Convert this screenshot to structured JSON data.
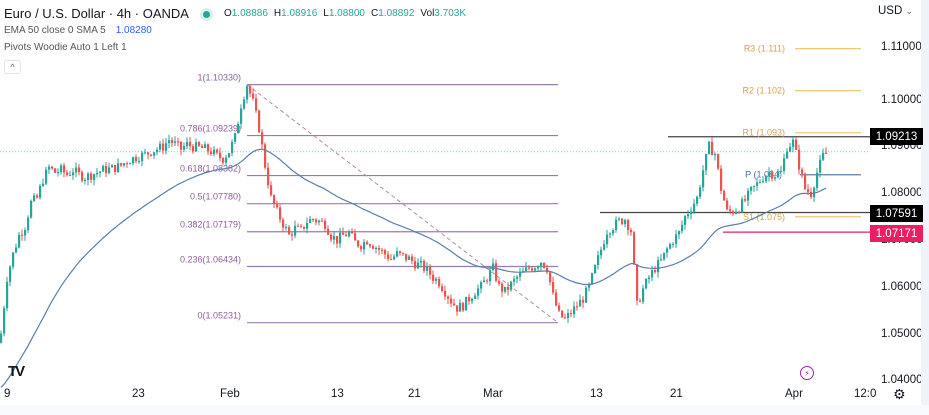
{
  "header": {
    "symbol_title": "Euro / U.S. Dollar · 4h · OANDA",
    "status_dot_color": "#26a69a",
    "ohlc": {
      "open_label": "O",
      "open": "1.08886",
      "high_label": "H",
      "high": "1.08916",
      "low_label": "L",
      "low": "1.08800",
      "close_label": "C",
      "close": "1.08892",
      "vol_label": "Vol",
      "vol": "3.703K"
    },
    "indicator_ema": {
      "label": "EMA 50 close 0 SMA 5",
      "value": "1.08280"
    },
    "indicator_pivots": {
      "label": "Pivots Woodie Auto 1 Left 1"
    },
    "collapse_icon": "^"
  },
  "price_axis": {
    "currency": "USD",
    "currency_chevron": "⌄",
    "ticks": [
      "1.11000",
      "1.10000",
      "1.09000",
      "1.08000",
      "1.07000",
      "1.06000",
      "1.05000",
      "1.04000"
    ],
    "badges": [
      {
        "value": "1.09213",
        "color": "#000000"
      },
      {
        "value": "1.07591",
        "color": "#000000"
      },
      {
        "value": "1.07171",
        "color": "#e91e63"
      }
    ]
  },
  "time_axis": {
    "ticks": [
      "9",
      "23",
      "Feb",
      "13",
      "21",
      "Mar",
      "13",
      "21",
      "Apr",
      "12:0"
    ]
  },
  "footer": {
    "logo": "TV",
    "settings_icon": "gear-icon",
    "flash_icon": "⚡"
  },
  "colors": {
    "up": "#26a69a",
    "down": "#ef5350",
    "ema": "#5b7fa6",
    "fib": "#9c7bab",
    "pivot": "#f0c674",
    "pivot_p": "#5b7fa6",
    "hline": "#444444",
    "support_red": "#e91e63",
    "current_price": "#26a69a"
  },
  "chart_data": {
    "type": "candlestick",
    "title": "Euro / U.S. Dollar · 4h · OANDA",
    "xlabel": "",
    "ylabel": "USD",
    "ylim": [
      1.04,
      1.115
    ],
    "x_tick_labels": [
      "9",
      "23",
      "Feb",
      "13",
      "21",
      "Mar",
      "13",
      "21",
      "Apr",
      "12:0"
    ],
    "y_tick_labels": [
      "1.11000",
      "1.10000",
      "1.09000",
      "1.08000",
      "1.07000",
      "1.06000",
      "1.05000",
      "1.04000"
    ],
    "last_bar": {
      "open": 1.08886,
      "high": 1.08916,
      "low": 1.088,
      "close": 1.08892,
      "volume": "3.703K"
    },
    "ema50": 1.0828,
    "fibonacci_retracement": [
      {
        "level": "1",
        "price": 1.1033,
        "label": "1(1.10330)"
      },
      {
        "level": "0.786",
        "price": 1.09239,
        "label": "0.786(1.09239)"
      },
      {
        "level": "0.618",
        "price": 1.08382,
        "label": "0.618(1.08382)"
      },
      {
        "level": "0.5",
        "price": 1.0778,
        "label": "0.5(1.07780)"
      },
      {
        "level": "0.382",
        "price": 1.07179,
        "label": "0.382(1.07179)"
      },
      {
        "level": "0.236",
        "price": 1.06434,
        "label": "0.236(1.06434)"
      },
      {
        "level": "0",
        "price": 1.05231,
        "label": "0(1.05231)"
      }
    ],
    "pivots_woodie": [
      {
        "name": "R3",
        "price": 1.111,
        "label": "R3 (1.111)"
      },
      {
        "name": "R2",
        "price": 1.102,
        "label": "R2 (1.102)"
      },
      {
        "name": "R1",
        "price": 1.093,
        "label": "R1 (1.093)"
      },
      {
        "name": "P",
        "price": 1.084,
        "label": "P (1.084)"
      },
      {
        "name": "S1",
        "price": 1.075,
        "label": "S1 (1.075)"
      }
    ],
    "horizontal_lines": [
      {
        "price": 1.09213,
        "color": "#000000"
      },
      {
        "price": 1.07591,
        "color": "#000000"
      },
      {
        "price": 1.07171,
        "color": "#e91e63"
      }
    ],
    "current_price_line": 1.08892,
    "close_path": [
      [
        0,
        1.05
      ],
      [
        6,
        1.062
      ],
      [
        12,
        1.067
      ],
      [
        18,
        1.071
      ],
      [
        24,
        1.073
      ],
      [
        30,
        1.078
      ],
      [
        36,
        1.079
      ],
      [
        42,
        1.083
      ],
      [
        48,
        1.0855
      ],
      [
        54,
        1.0845
      ],
      [
        60,
        1.085
      ],
      [
        66,
        1.084
      ],
      [
        72,
        1.085
      ],
      [
        78,
        1.084
      ],
      [
        84,
        1.0835
      ],
      [
        90,
        1.084
      ],
      [
        96,
        1.0845
      ],
      [
        102,
        1.085
      ],
      [
        108,
        1.0852
      ],
      [
        114,
        1.0855
      ],
      [
        120,
        1.086
      ],
      [
        126,
        1.087
      ],
      [
        132,
        1.0875
      ],
      [
        138,
        1.088
      ],
      [
        144,
        1.0883
      ],
      [
        150,
        1.089
      ],
      [
        156,
        1.0895
      ],
      [
        162,
        1.09
      ],
      [
        168,
        1.0915
      ],
      [
        174,
        1.0905
      ],
      [
        180,
        1.0895
      ],
      [
        186,
        1.0905
      ],
      [
        192,
        1.09
      ],
      [
        198,
        1.0898
      ],
      [
        204,
        1.0895
      ],
      [
        210,
        1.089
      ],
      [
        216,
        1.088
      ],
      [
        222,
        1.0875
      ],
      [
        228,
        1.089
      ],
      [
        234,
        1.092
      ],
      [
        240,
        1.099
      ],
      [
        246,
        1.1033
      ],
      [
        252,
        1.0995
      ],
      [
        258,
        1.094
      ],
      [
        264,
        1.086
      ],
      [
        270,
        1.079
      ],
      [
        276,
        1.076
      ],
      [
        282,
        1.0735
      ],
      [
        288,
        1.071
      ],
      [
        294,
        1.0725
      ],
      [
        300,
        1.072
      ],
      [
        306,
        1.074
      ],
      [
        312,
        1.0745
      ],
      [
        318,
        1.074
      ],
      [
        324,
        1.0735
      ],
      [
        330,
        1.071
      ],
      [
        336,
        1.07
      ],
      [
        342,
        1.071
      ],
      [
        348,
        1.0715
      ],
      [
        354,
        1.0695
      ],
      [
        360,
        1.069
      ],
      [
        366,
        1.07
      ],
      [
        372,
        1.069
      ],
      [
        378,
        1.068
      ],
      [
        384,
        1.067
      ],
      [
        390,
        1.066
      ],
      [
        396,
        1.067
      ],
      [
        402,
        1.0665
      ],
      [
        408,
        1.066
      ],
      [
        414,
        1.065
      ],
      [
        420,
        1.0645
      ],
      [
        426,
        1.0635
      ],
      [
        432,
        1.062
      ],
      [
        438,
        1.061
      ],
      [
        444,
        1.059
      ],
      [
        450,
        1.057
      ],
      [
        456,
        1.0555
      ],
      [
        462,
        1.056
      ],
      [
        468,
        1.0575
      ],
      [
        474,
        1.059
      ],
      [
        480,
        1.06
      ],
      [
        486,
        1.062
      ],
      [
        492,
        1.064
      ],
      [
        498,
        1.06
      ],
      [
        504,
        1.059
      ],
      [
        510,
        1.0605
      ],
      [
        516,
        1.062
      ],
      [
        522,
        1.063
      ],
      [
        528,
        1.064
      ],
      [
        534,
        1.0645
      ],
      [
        540,
        1.0655
      ],
      [
        546,
        1.064
      ],
      [
        552,
        1.058
      ],
      [
        558,
        1.054
      ],
      [
        564,
        1.053
      ],
      [
        570,
        1.0545
      ],
      [
        576,
        1.056
      ],
      [
        582,
        1.0575
      ],
      [
        588,
        1.06
      ],
      [
        594,
        1.064
      ],
      [
        600,
        1.068
      ],
      [
        606,
        1.072
      ],
      [
        612,
        1.073
      ],
      [
        618,
        1.074
      ],
      [
        624,
        1.0745
      ],
      [
        630,
        1.072
      ],
      [
        636,
        1.056
      ],
      [
        642,
        1.0595
      ],
      [
        648,
        1.062
      ],
      [
        654,
        1.064
      ],
      [
        660,
        1.0655
      ],
      [
        666,
        1.068
      ],
      [
        672,
        1.07
      ],
      [
        678,
        1.0715
      ],
      [
        684,
        1.075
      ],
      [
        690,
        1.077
      ],
      [
        696,
        1.079
      ],
      [
        702,
        1.085
      ],
      [
        708,
        1.09
      ],
      [
        714,
        1.0885
      ],
      [
        720,
        1.081
      ],
      [
        726,
        1.076
      ],
      [
        732,
        1.0762
      ],
      [
        738,
        1.077
      ],
      [
        744,
        1.0785
      ],
      [
        750,
        1.0805
      ],
      [
        756,
        1.082
      ],
      [
        762,
        1.0835
      ],
      [
        768,
        1.0845
      ],
      [
        774,
        1.084
      ],
      [
        780,
        1.0845
      ],
      [
        786,
        1.09
      ],
      [
        792,
        1.091
      ],
      [
        798,
        1.086
      ],
      [
        804,
        1.081
      ],
      [
        810,
        1.08
      ],
      [
        816,
        1.0845
      ],
      [
        822,
        1.088
      ],
      [
        828,
        1.0889
      ]
    ]
  }
}
